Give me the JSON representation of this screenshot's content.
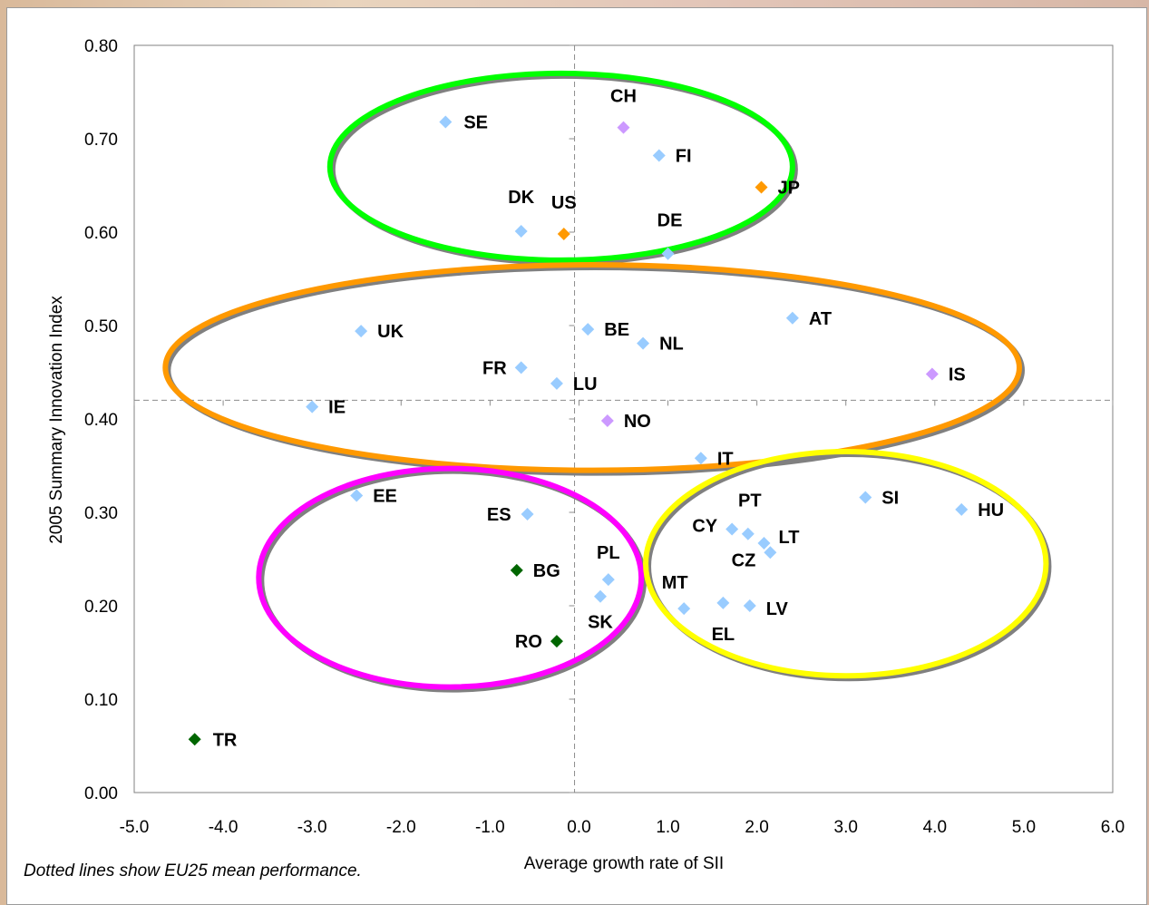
{
  "chart_data": {
    "type": "scatter",
    "xlabel": "Average growth rate of SII",
    "ylabel": "2005 Summary Innovation Index",
    "xlim": [
      -5.0,
      6.0
    ],
    "ylim": [
      0.0,
      0.8
    ],
    "x_ticks": [
      "-5.0",
      "-4.0",
      "-3.0",
      "-2.0",
      "-1.0",
      "0.0",
      "1.0",
      "2.0",
      "3.0",
      "4.0",
      "5.0",
      "6.0"
    ],
    "y_ticks": [
      "0.00",
      "0.10",
      "0.20",
      "0.30",
      "0.40",
      "0.50",
      "0.60",
      "0.70",
      "0.80"
    ],
    "reference_lines": {
      "x": -0.05,
      "y": 0.42,
      "style": "dashed"
    },
    "note": "Dotted lines show EU25 mean performance.",
    "colors": {
      "eu": "#99ccff",
      "us_jp": "#ff9900",
      "ch_is_no": "#cc99ff",
      "candidates": "#006600",
      "ellipse_green": "#00ff00",
      "ellipse_orange": "#ff9900",
      "ellipse_magenta": "#ff00ff",
      "ellipse_yellow": "#ffff00"
    },
    "points": [
      {
        "label": "SE",
        "x": -1.5,
        "y": 0.718,
        "color": "#99ccff"
      },
      {
        "label": "CH",
        "x": 0.5,
        "y": 0.712,
        "color": "#cc99ff"
      },
      {
        "label": "FI",
        "x": 0.9,
        "y": 0.682,
        "color": "#99ccff"
      },
      {
        "label": "JP",
        "x": 2.05,
        "y": 0.648,
        "color": "#ff9900"
      },
      {
        "label": "DK",
        "x": -0.65,
        "y": 0.601,
        "color": "#99ccff"
      },
      {
        "label": "US",
        "x": -0.17,
        "y": 0.598,
        "color": "#ff9900"
      },
      {
        "label": "DE",
        "x": 1.0,
        "y": 0.577,
        "color": "#99ccff"
      },
      {
        "label": "AT",
        "x": 2.4,
        "y": 0.508,
        "color": "#99ccff"
      },
      {
        "label": "UK",
        "x": -2.45,
        "y": 0.494,
        "color": "#99ccff"
      },
      {
        "label": "BE",
        "x": 0.1,
        "y": 0.496,
        "color": "#99ccff"
      },
      {
        "label": "NL",
        "x": 0.72,
        "y": 0.481,
        "color": "#99ccff"
      },
      {
        "label": "FR",
        "x": -0.65,
        "y": 0.455,
        "color": "#99ccff"
      },
      {
        "label": "IS",
        "x": 3.97,
        "y": 0.448,
        "color": "#cc99ff"
      },
      {
        "label": "LU",
        "x": -0.25,
        "y": 0.438,
        "color": "#99ccff"
      },
      {
        "label": "IE",
        "x": -3.0,
        "y": 0.413,
        "color": "#99ccff"
      },
      {
        "label": "NO",
        "x": 0.32,
        "y": 0.398,
        "color": "#cc99ff"
      },
      {
        "label": "IT",
        "x": 1.37,
        "y": 0.358,
        "color": "#99ccff"
      },
      {
        "label": "EE",
        "x": -2.5,
        "y": 0.318,
        "color": "#99ccff"
      },
      {
        "label": "SI",
        "x": 3.22,
        "y": 0.316,
        "color": "#99ccff"
      },
      {
        "label": "HU",
        "x": 4.3,
        "y": 0.303,
        "color": "#99ccff"
      },
      {
        "label": "ES",
        "x": -0.58,
        "y": 0.298,
        "color": "#99ccff"
      },
      {
        "label": "CY",
        "x": 1.72,
        "y": 0.282,
        "color": "#99ccff"
      },
      {
        "label": "PT",
        "x": 1.9,
        "y": 0.277,
        "color": "#99ccff"
      },
      {
        "label": "LT",
        "x": 2.08,
        "y": 0.267,
        "color": "#99ccff"
      },
      {
        "label": "CZ",
        "x": 2.15,
        "y": 0.257,
        "color": "#99ccff"
      },
      {
        "label": "BG",
        "x": -0.7,
        "y": 0.238,
        "color": "#006600"
      },
      {
        "label": "PL",
        "x": 0.33,
        "y": 0.228,
        "color": "#99ccff"
      },
      {
        "label": "SK",
        "x": 0.24,
        "y": 0.21,
        "color": "#99ccff"
      },
      {
        "label": "EL",
        "x": 1.62,
        "y": 0.203,
        "color": "#99ccff"
      },
      {
        "label": "LV",
        "x": 1.92,
        "y": 0.2,
        "color": "#99ccff"
      },
      {
        "label": "MT",
        "x": 1.18,
        "y": 0.197,
        "color": "#99ccff"
      },
      {
        "label": "RO",
        "x": -0.25,
        "y": 0.162,
        "color": "#006600"
      },
      {
        "label": "TR",
        "x": -4.32,
        "y": 0.057,
        "color": "#006600"
      }
    ],
    "ellipses": [
      {
        "color": "#00ff00",
        "cx": -0.2,
        "cy": 0.67,
        "rx": 2.6,
        "ry": 0.1
      },
      {
        "color": "#ff9900",
        "cx": 0.15,
        "cy": 0.455,
        "rx": 4.8,
        "ry": 0.11
      },
      {
        "color": "#ff00ff",
        "cx": -1.45,
        "cy": 0.23,
        "rx": 2.15,
        "ry": 0.117
      },
      {
        "color": "#ffff00",
        "cx": 3.0,
        "cy": 0.245,
        "rx": 2.25,
        "ry": 0.12
      }
    ]
  }
}
